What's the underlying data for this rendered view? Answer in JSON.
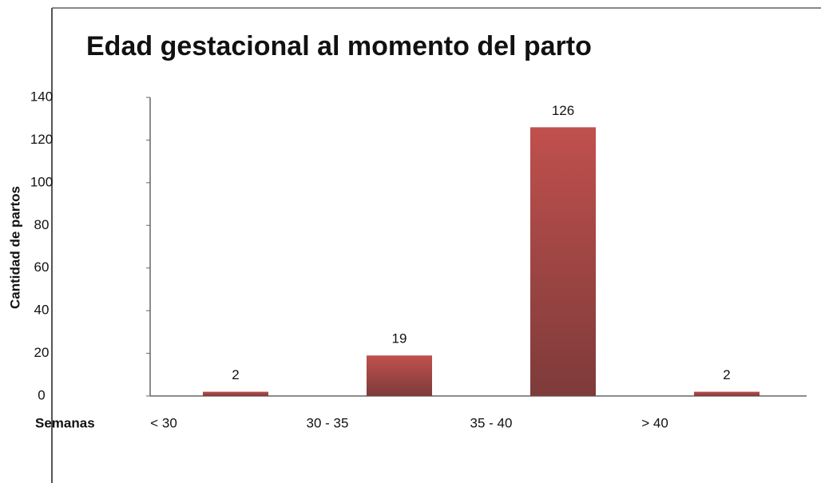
{
  "chart_data": {
    "type": "bar",
    "title": "Edad gestacional al momento del parto",
    "x_label": "Semanas",
    "y_label": "Cantidad de partos",
    "categories": [
      "< 30",
      "30 - 35",
      "35 - 40",
      "> 40"
    ],
    "values": [
      2,
      19,
      126,
      2
    ],
    "color": "#c0504d",
    "ylim": [
      0,
      140
    ],
    "yticks": [
      0,
      20,
      40,
      60,
      80,
      100,
      120,
      140
    ],
    "grid": false
  }
}
